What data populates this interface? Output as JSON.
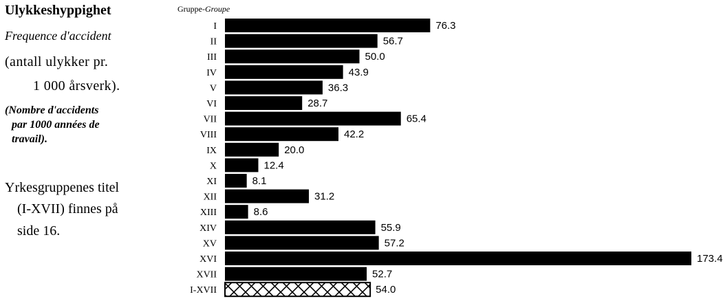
{
  "legend_text": {
    "title": "Ulykkeshyppighet",
    "subtitle_fr": "Frequence d'accident",
    "desc_no_line1": "(antall ulykker pr.",
    "desc_no_line2": "1 000 årsverk).",
    "desc_fr_line1": "(Nombre d'accidents",
    "desc_fr_line2": "par 1000 années de",
    "desc_fr_line3": "travail).",
    "note_line1": "Yrkesgruppenes titel",
    "note_line2": "(I-XVII) finnes på",
    "note_line3": "side 16."
  },
  "chart_data": {
    "type": "bar",
    "orientation": "horizontal",
    "group_header": "Gruppe-",
    "group_header_fr": "Groupe",
    "categories": [
      "I",
      "II",
      "III",
      "IV",
      "V",
      "VI",
      "VII",
      "VIII",
      "IX",
      "X",
      "XI",
      "XII",
      "XIII",
      "XIV",
      "XV",
      "XVI",
      "XVII",
      "I-XVII"
    ],
    "values": [
      76.3,
      56.7,
      50.0,
      43.9,
      36.3,
      28.7,
      65.4,
      42.2,
      20.0,
      12.4,
      8.1,
      31.2,
      8.6,
      55.9,
      57.2,
      173.4,
      52.7,
      54.0
    ],
    "value_labels": [
      "76.3",
      "56.7",
      "50.0",
      "43.9",
      "36.3",
      "28.7",
      "65.4",
      "42.2",
      "20.0",
      "12.4",
      "8.1",
      "31.2",
      "8.6",
      "55.9",
      "57.2",
      "173.4",
      "52.7",
      "54.0"
    ],
    "total_category": "I-XVII",
    "total_style": "cross-hatched outline",
    "bar_color": "#000000",
    "grid": false,
    "xlim": [
      0,
      175
    ]
  }
}
